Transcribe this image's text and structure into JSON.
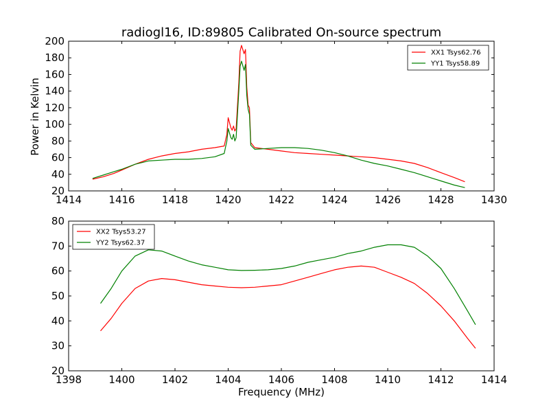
{
  "title": "radiogl16, ID:89805 Calibrated On-source spectrum",
  "colors": {
    "red": "#ff0000",
    "green": "#008000"
  },
  "chart_data": [
    {
      "type": "line",
      "ylabel": "Power in Kelvin",
      "xlabel": "",
      "xlim": [
        1414,
        1430
      ],
      "ylim": [
        20,
        200
      ],
      "xticks": [
        1414,
        1416,
        1418,
        1420,
        1422,
        1424,
        1426,
        1428,
        1430
      ],
      "yticks": [
        20,
        40,
        60,
        80,
        100,
        120,
        140,
        160,
        180,
        200
      ],
      "legend_position": "top-right",
      "series": [
        {
          "name": "XX1 Tsys62.76",
          "color": "#ff0000",
          "points": [
            [
              1414.9,
              34
            ],
            [
              1415.3,
              37
            ],
            [
              1415.7,
              41
            ],
            [
              1416.0,
              45
            ],
            [
              1416.5,
              52
            ],
            [
              1417.0,
              58
            ],
            [
              1417.5,
              62
            ],
            [
              1418.0,
              65
            ],
            [
              1418.5,
              67
            ],
            [
              1419.0,
              70
            ],
            [
              1419.5,
              72
            ],
            [
              1419.85,
              74
            ],
            [
              1419.95,
              88
            ],
            [
              1420.0,
              108
            ],
            [
              1420.1,
              96
            ],
            [
              1420.15,
              93
            ],
            [
              1420.2,
              98
            ],
            [
              1420.25,
              92
            ],
            [
              1420.3,
              95
            ],
            [
              1420.4,
              150
            ],
            [
              1420.45,
              188
            ],
            [
              1420.5,
              195
            ],
            [
              1420.6,
              185
            ],
            [
              1420.65,
              190
            ],
            [
              1420.7,
              145
            ],
            [
              1420.75,
              123
            ],
            [
              1420.8,
              120
            ],
            [
              1420.85,
              78
            ],
            [
              1421.0,
              72
            ],
            [
              1421.5,
              70
            ],
            [
              1422.0,
              68
            ],
            [
              1422.5,
              66
            ],
            [
              1423.0,
              65
            ],
            [
              1423.5,
              64
            ],
            [
              1424.0,
              63
            ],
            [
              1424.5,
              62
            ],
            [
              1425.0,
              61
            ],
            [
              1425.5,
              60
            ],
            [
              1426.0,
              58
            ],
            [
              1426.5,
              56
            ],
            [
              1427.0,
              53
            ],
            [
              1427.5,
              48
            ],
            [
              1428.0,
              42
            ],
            [
              1428.5,
              36
            ],
            [
              1428.9,
              31
            ]
          ]
        },
        {
          "name": "YY1 Tsys58.89",
          "color": "#008000",
          "points": [
            [
              1414.9,
              35
            ],
            [
              1415.3,
              39
            ],
            [
              1415.7,
              43
            ],
            [
              1416.0,
              46
            ],
            [
              1416.5,
              52
            ],
            [
              1417.0,
              56
            ],
            [
              1417.5,
              57
            ],
            [
              1418.0,
              58
            ],
            [
              1418.5,
              58
            ],
            [
              1419.0,
              59
            ],
            [
              1419.5,
              61
            ],
            [
              1419.85,
              65
            ],
            [
              1419.95,
              80
            ],
            [
              1420.0,
              95
            ],
            [
              1420.1,
              84
            ],
            [
              1420.15,
              82
            ],
            [
              1420.2,
              88
            ],
            [
              1420.25,
              80
            ],
            [
              1420.3,
              84
            ],
            [
              1420.4,
              140
            ],
            [
              1420.45,
              170
            ],
            [
              1420.5,
              176
            ],
            [
              1420.6,
              165
            ],
            [
              1420.65,
              172
            ],
            [
              1420.7,
              135
            ],
            [
              1420.75,
              118
            ],
            [
              1420.8,
              112
            ],
            [
              1420.85,
              75
            ],
            [
              1421.0,
              70
            ],
            [
              1421.5,
              71
            ],
            [
              1422.0,
              72
            ],
            [
              1422.5,
              72
            ],
            [
              1423.0,
              71
            ],
            [
              1423.5,
              69
            ],
            [
              1424.0,
              66
            ],
            [
              1424.5,
              62
            ],
            [
              1425.0,
              57
            ],
            [
              1425.5,
              53
            ],
            [
              1426.0,
              50
            ],
            [
              1426.5,
              46
            ],
            [
              1427.0,
              42
            ],
            [
              1427.5,
              37
            ],
            [
              1428.0,
              32
            ],
            [
              1428.5,
              27
            ],
            [
              1428.9,
              24
            ]
          ]
        }
      ]
    },
    {
      "type": "line",
      "ylabel": "",
      "xlabel": "Frequency (MHz)",
      "xlim": [
        1398,
        1414
      ],
      "ylim": [
        20,
        80
      ],
      "xticks": [
        1398,
        1400,
        1402,
        1404,
        1406,
        1408,
        1410,
        1412,
        1414
      ],
      "yticks": [
        20,
        30,
        40,
        50,
        60,
        70,
        80
      ],
      "legend_position": "top-left",
      "series": [
        {
          "name": "XX2 Tsys53.27",
          "color": "#ff0000",
          "points": [
            [
              1399.2,
              36
            ],
            [
              1399.6,
              41
            ],
            [
              1400.0,
              47
            ],
            [
              1400.5,
              53
            ],
            [
              1401.0,
              56
            ],
            [
              1401.5,
              57
            ],
            [
              1402.0,
              56.5
            ],
            [
              1402.5,
              55.5
            ],
            [
              1403.0,
              54.5
            ],
            [
              1403.5,
              54
            ],
            [
              1404.0,
              53.5
            ],
            [
              1404.5,
              53.3
            ],
            [
              1405.0,
              53.5
            ],
            [
              1405.5,
              54
            ],
            [
              1406.0,
              54.5
            ],
            [
              1406.5,
              56
            ],
            [
              1407.0,
              57.5
            ],
            [
              1407.5,
              59
            ],
            [
              1408.0,
              60.5
            ],
            [
              1408.5,
              61.5
            ],
            [
              1409.0,
              62
            ],
            [
              1409.5,
              61.5
            ],
            [
              1410.0,
              59.5
            ],
            [
              1410.5,
              57.5
            ],
            [
              1411.0,
              55
            ],
            [
              1411.5,
              51
            ],
            [
              1412.0,
              46
            ],
            [
              1412.5,
              40
            ],
            [
              1413.0,
              33
            ],
            [
              1413.3,
              29
            ]
          ]
        },
        {
          "name": "YY2 Tsys62.37",
          "color": "#008000",
          "points": [
            [
              1399.2,
              47
            ],
            [
              1399.6,
              53
            ],
            [
              1400.0,
              60
            ],
            [
              1400.5,
              66
            ],
            [
              1401.0,
              68.5
            ],
            [
              1401.5,
              68
            ],
            [
              1402.0,
              66
            ],
            [
              1402.5,
              64
            ],
            [
              1403.0,
              62.5
            ],
            [
              1403.5,
              61.5
            ],
            [
              1404.0,
              60.5
            ],
            [
              1404.5,
              60.2
            ],
            [
              1405.0,
              60.3
            ],
            [
              1405.5,
              60.5
            ],
            [
              1406.0,
              61
            ],
            [
              1406.5,
              62
            ],
            [
              1407.0,
              63.5
            ],
            [
              1407.5,
              64.5
            ],
            [
              1408.0,
              65.5
            ],
            [
              1408.5,
              67
            ],
            [
              1409.0,
              68
            ],
            [
              1409.5,
              69.5
            ],
            [
              1410.0,
              70.5
            ],
            [
              1410.5,
              70.5
            ],
            [
              1411.0,
              69.5
            ],
            [
              1411.5,
              66
            ],
            [
              1412.0,
              61
            ],
            [
              1412.5,
              53
            ],
            [
              1413.0,
              44
            ],
            [
              1413.3,
              38.5
            ]
          ]
        }
      ]
    }
  ]
}
